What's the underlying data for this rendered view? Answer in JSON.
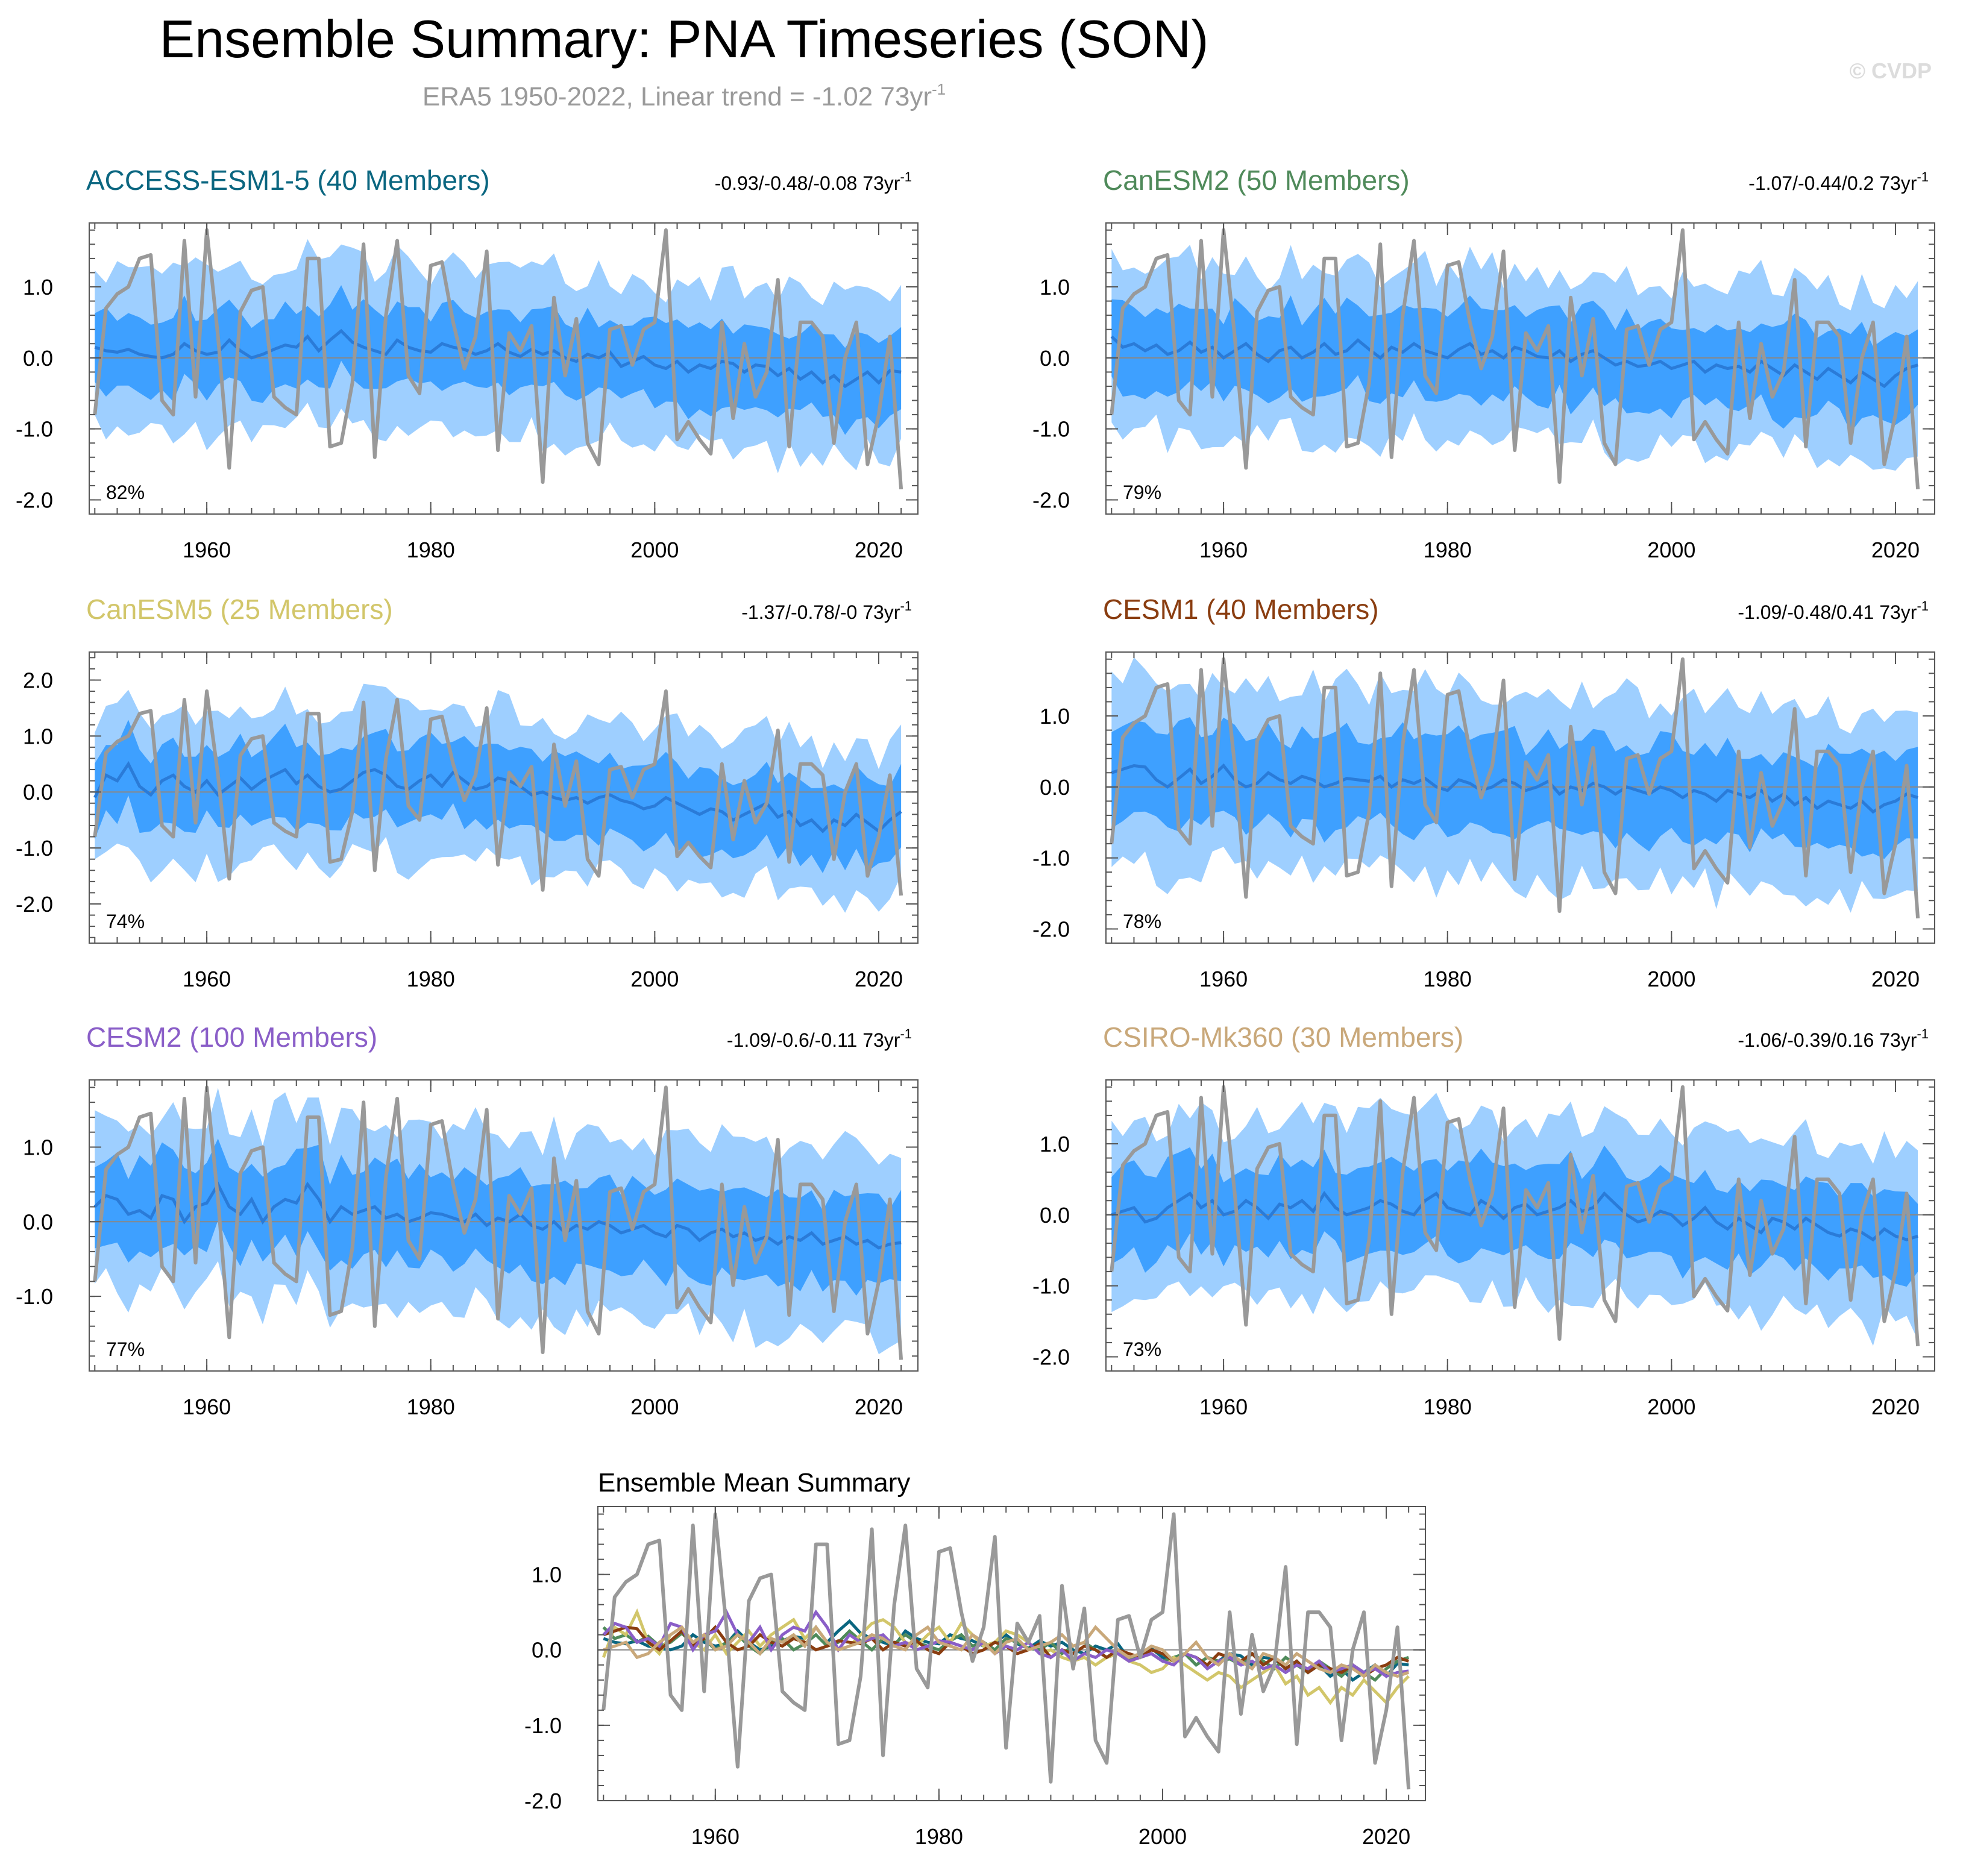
{
  "figure": {
    "title": "Ensemble Summary: PNA Timeseries (SON)",
    "subtitle_prefix": "ERA5 1950-2022, Linear trend = -1.02 73yr",
    "subtitle_sup": "-1",
    "watermark": "© CVDP",
    "trend_unit": "73yr",
    "trend_sup": "-1"
  },
  "colors": {
    "obs": "#999999",
    "outer_band": "#9ecfff",
    "inner_band": "#3ea0ff",
    "ens_mean": "#2a7bd8",
    "zero_line": "#888888"
  },
  "chart_data": [
    {
      "type": "area",
      "name": "ACCESS-ESM1-5",
      "title": "ACCESS-ESM1-5 (40 Members)",
      "title_color": "#0a6680",
      "trend_label": "-0.93/-0.48/-0.08",
      "percent_label": "82%",
      "ylim": [
        -2.2,
        1.9
      ],
      "yticks": [
        -2.0,
        -1.0,
        0.0,
        1.0
      ],
      "ytick_labels": [
        "-2.0",
        "-1.0",
        "0.0",
        "1.0"
      ],
      "xlim": [
        1949.5,
        2023.5
      ],
      "xticks": [
        1960,
        1980,
        2000,
        2020
      ],
      "mean_series": [
        0.15,
        0.1,
        0.08,
        0.12,
        0.05,
        0.02,
        0.0,
        0.05,
        0.2,
        0.1,
        0.05,
        0.08,
        0.25,
        0.1,
        0.0,
        0.05,
        0.12,
        0.18,
        0.15,
        0.3,
        0.1,
        0.25,
        0.38,
        0.22,
        0.15,
        0.1,
        0.05,
        0.25,
        0.15,
        0.1,
        0.08,
        0.2,
        0.15,
        0.12,
        0.05,
        0.1,
        0.2,
        0.08,
        0.02,
        0.12,
        0.05,
        0.1,
        0.0,
        -0.05,
        0.05,
        0.0,
        0.08,
        -0.12,
        -0.05,
        0.02,
        -0.1,
        -0.15,
        -0.05,
        -0.2,
        -0.1,
        -0.15,
        -0.05,
        -0.08,
        -0.2,
        -0.1,
        -0.12,
        -0.25,
        -0.15,
        -0.3,
        -0.2,
        -0.35,
        -0.25,
        -0.4,
        -0.3,
        -0.2,
        -0.35,
        -0.18,
        -0.2
      ],
      "inner_halfwidth": 0.55,
      "outer_halfwidth": 1.15,
      "seed": 11
    },
    {
      "type": "area",
      "name": "CanESM2",
      "title": "CanESM2 (50 Members)",
      "title_color": "#4f8a5a",
      "trend_label": "-1.07/-0.44/0.2",
      "percent_label": "79%",
      "ylim": [
        -2.2,
        1.9
      ],
      "yticks": [
        -2.0,
        -1.0,
        0.0,
        1.0
      ],
      "ytick_labels": [
        "-2.0",
        "-1.0",
        "0.0",
        "1.0"
      ],
      "xlim": [
        1949.5,
        2023.5
      ],
      "xticks": [
        1960,
        1980,
        2000,
        2020
      ],
      "mean_series": [
        0.3,
        0.15,
        0.2,
        0.1,
        0.18,
        0.05,
        0.1,
        0.22,
        0.08,
        0.15,
        0.0,
        0.1,
        0.2,
        0.05,
        -0.05,
        0.1,
        0.15,
        0.0,
        0.08,
        0.2,
        0.05,
        0.1,
        0.25,
        0.12,
        0.0,
        0.15,
        0.08,
        0.2,
        0.1,
        0.05,
        0.0,
        0.12,
        0.2,
        0.05,
        0.1,
        0.0,
        0.15,
        0.1,
        0.02,
        0.0,
        0.1,
        -0.05,
        0.05,
        0.1,
        0.0,
        -0.1,
        -0.05,
        -0.12,
        -0.1,
        -0.05,
        -0.15,
        -0.1,
        -0.05,
        -0.2,
        -0.1,
        -0.15,
        -0.12,
        -0.2,
        -0.05,
        -0.15,
        -0.25,
        -0.1,
        -0.2,
        -0.3,
        -0.15,
        -0.25,
        -0.35,
        -0.2,
        -0.3,
        -0.4,
        -0.25,
        -0.15,
        -0.1
      ],
      "inner_halfwidth": 0.6,
      "outer_halfwidth": 1.2,
      "seed": 23
    },
    {
      "type": "area",
      "name": "CanESM5",
      "title": "CanESM5 (25 Members)",
      "title_color": "#d2c66a",
      "trend_label": "-1.37/-0.78/-0",
      "percent_label": "74%",
      "ylim": [
        -2.7,
        2.5
      ],
      "yticks": [
        -2.0,
        -1.0,
        0.0,
        1.0,
        2.0
      ],
      "ytick_labels": [
        "-2.0",
        "-1.0",
        "0.0",
        "1.0",
        "2.0"
      ],
      "xlim": [
        1949.5,
        2023.5
      ],
      "xticks": [
        1960,
        1980,
        2000,
        2020
      ],
      "mean_series": [
        -0.1,
        0.3,
        0.2,
        0.5,
        0.1,
        -0.05,
        0.2,
        0.3,
        0.1,
        0.0,
        0.2,
        -0.05,
        0.1,
        0.25,
        0.05,
        0.2,
        0.3,
        0.4,
        0.15,
        0.3,
        0.1,
        0.0,
        0.05,
        0.2,
        0.35,
        0.4,
        0.3,
        0.1,
        0.05,
        0.2,
        0.3,
        0.1,
        0.35,
        0.2,
        0.05,
        0.1,
        0.25,
        0.2,
        0.1,
        -0.05,
        0.0,
        -0.1,
        -0.15,
        -0.1,
        -0.2,
        -0.1,
        -0.05,
        -0.15,
        -0.2,
        -0.3,
        -0.25,
        -0.1,
        -0.2,
        -0.3,
        -0.4,
        -0.3,
        -0.35,
        -0.5,
        -0.4,
        -0.3,
        -0.2,
        -0.45,
        -0.35,
        -0.6,
        -0.5,
        -0.7,
        -0.5,
        -0.6,
        -0.4,
        -0.55,
        -0.7,
        -0.5,
        -0.35
      ],
      "inner_halfwidth": 0.7,
      "outer_halfwidth": 1.35,
      "seed": 37
    },
    {
      "type": "area",
      "name": "CESM1",
      "title": "CESM1 (40 Members)",
      "title_color": "#8a3d10",
      "trend_label": "-1.09/-0.48/0.41",
      "percent_label": "78%",
      "ylim": [
        -2.2,
        1.9
      ],
      "yticks": [
        -2.0,
        -1.0,
        0.0,
        1.0
      ],
      "ytick_labels": [
        "-2.0",
        "-1.0",
        "0.0",
        "1.0"
      ],
      "xlim": [
        1949.5,
        2023.5
      ],
      "xticks": [
        1960,
        1980,
        2000,
        2020
      ],
      "mean_series": [
        0.2,
        0.25,
        0.3,
        0.28,
        0.1,
        0.0,
        0.12,
        0.25,
        0.05,
        0.15,
        0.3,
        0.1,
        0.0,
        0.05,
        0.2,
        0.1,
        0.05,
        0.15,
        0.1,
        0.0,
        0.05,
        0.12,
        0.1,
        0.08,
        0.15,
        0.0,
        0.1,
        0.05,
        0.12,
        0.0,
        -0.05,
        0.1,
        0.05,
        -0.05,
        0.0,
        0.1,
        0.05,
        -0.05,
        0.0,
        0.08,
        -0.1,
        0.0,
        -0.05,
        0.05,
        0.0,
        -0.1,
        0.0,
        -0.05,
        -0.1,
        0.0,
        -0.05,
        -0.15,
        -0.05,
        -0.1,
        -0.2,
        -0.05,
        -0.1,
        -0.15,
        -0.05,
        -0.2,
        -0.1,
        -0.25,
        -0.15,
        -0.3,
        -0.2,
        -0.25,
        -0.3,
        -0.2,
        -0.35,
        -0.25,
        -0.2,
        -0.1,
        -0.15
      ],
      "inner_halfwidth": 0.65,
      "outer_halfwidth": 1.3,
      "seed": 51
    },
    {
      "type": "area",
      "name": "CESM2",
      "title": "CESM2 (100 Members)",
      "title_color": "#8a5ec8",
      "trend_label": "-1.09/-0.6/-0.11",
      "percent_label": "77%",
      "ylim": [
        -2.0,
        1.9
      ],
      "yticks": [
        -1.0,
        0.0,
        1.0
      ],
      "ytick_labels": [
        "-1.0",
        "0.0",
        "1.0"
      ],
      "xlim": [
        1949.5,
        2023.5
      ],
      "xticks": [
        1960,
        1980,
        2000,
        2020
      ],
      "mean_series": [
        0.2,
        0.35,
        0.3,
        0.1,
        0.15,
        0.05,
        0.35,
        0.3,
        0.0,
        0.2,
        0.25,
        0.5,
        0.2,
        0.1,
        0.3,
        0.0,
        0.2,
        0.3,
        0.25,
        0.5,
        0.3,
        0.0,
        0.2,
        0.1,
        0.15,
        0.2,
        0.05,
        0.1,
        0.0,
        0.05,
        0.12,
        0.1,
        0.05,
        0.0,
        0.1,
        -0.05,
        0.05,
        0.0,
        0.1,
        -0.05,
        -0.1,
        0.0,
        -0.15,
        -0.05,
        -0.1,
        0.0,
        -0.05,
        -0.15,
        -0.1,
        -0.05,
        -0.15,
        -0.2,
        -0.05,
        -0.1,
        -0.25,
        -0.15,
        -0.1,
        -0.2,
        -0.15,
        -0.25,
        -0.2,
        -0.3,
        -0.2,
        -0.25,
        -0.15,
        -0.3,
        -0.25,
        -0.2,
        -0.3,
        -0.25,
        -0.35,
        -0.3,
        -0.28
      ],
      "inner_halfwidth": 0.6,
      "outer_halfwidth": 1.2,
      "seed": 67
    },
    {
      "type": "area",
      "name": "CSIRO-Mk360",
      "title": "CSIRO-Mk360 (30 Members)",
      "title_color": "#c9a87a",
      "trend_label": "-1.06/-0.39/0.16",
      "percent_label": "73%",
      "ylim": [
        -2.2,
        1.9
      ],
      "yticks": [
        -2.0,
        -1.0,
        0.0,
        1.0
      ],
      "ytick_labels": [
        "-2.0",
        "-1.0",
        "0.0",
        "1.0"
      ],
      "xlim": [
        1949.5,
        2023.5
      ],
      "xticks": [
        1960,
        1980,
        2000,
        2020
      ],
      "mean_series": [
        0.0,
        0.05,
        0.1,
        -0.1,
        -0.05,
        0.1,
        0.2,
        0.3,
        0.1,
        0.2,
        0.0,
        0.05,
        0.2,
        0.1,
        -0.05,
        0.15,
        0.1,
        0.2,
        0.05,
        0.3,
        0.1,
        0.0,
        0.05,
        0.1,
        0.2,
        0.15,
        0.05,
        0.0,
        0.2,
        0.3,
        0.1,
        0.05,
        0.0,
        0.2,
        0.1,
        -0.05,
        0.1,
        0.15,
        0.0,
        0.05,
        0.1,
        0.2,
        0.05,
        0.1,
        0.3,
        0.15,
        0.0,
        -0.1,
        -0.05,
        0.05,
        0.0,
        -0.15,
        -0.05,
        0.1,
        -0.1,
        -0.2,
        -0.05,
        -0.15,
        -0.25,
        -0.05,
        -0.1,
        -0.2,
        -0.05,
        -0.15,
        -0.25,
        -0.3,
        -0.2,
        -0.25,
        -0.35,
        -0.2,
        -0.3,
        -0.35,
        -0.3
      ],
      "inner_halfwidth": 0.6,
      "outer_halfwidth": 1.25,
      "seed": 83
    },
    {
      "type": "line",
      "name": "Ensemble Mean Summary",
      "title": "Ensemble Mean Summary",
      "ylim": [
        -2.0,
        1.9
      ],
      "yticks": [
        -2.0,
        -1.0,
        0.0,
        1.0
      ],
      "ytick_labels": [
        "-2.0",
        "-1.0",
        "0.0",
        "1.0"
      ],
      "xlim": [
        1949.5,
        2023.5
      ],
      "xticks": [
        1960,
        1980,
        2000,
        2020
      ],
      "series_colors": [
        "#0a6680",
        "#4f8a5a",
        "#d2c66a",
        "#8a3d10",
        "#8a5ec8",
        "#c9a87a"
      ]
    }
  ],
  "obs": {
    "name": "ERA5",
    "start_year": 1950,
    "values": [
      -0.8,
      0.7,
      0.9,
      1.0,
      1.4,
      1.45,
      -0.6,
      -0.8,
      1.65,
      -0.55,
      1.8,
      0.3,
      -1.55,
      0.65,
      0.95,
      1.0,
      -0.55,
      -0.7,
      -0.8,
      1.4,
      1.4,
      -1.25,
      -1.2,
      -0.35,
      1.6,
      -1.4,
      0.6,
      1.65,
      -0.25,
      -0.5,
      1.3,
      1.35,
      0.5,
      -0.15,
      0.3,
      1.5,
      -1.3,
      0.35,
      0.1,
      0.45,
      -1.75,
      0.85,
      -0.25,
      0.55,
      -1.2,
      -1.5,
      0.4,
      0.45,
      -0.1,
      0.4,
      0.5,
      1.8,
      -1.15,
      -0.9,
      -1.15,
      -1.35,
      0.5,
      -0.85,
      0.2,
      -0.55,
      -0.2,
      1.1,
      -1.25,
      0.5,
      0.5,
      0.3,
      -1.2,
      0.0,
      0.5,
      -1.5,
      -0.8,
      0.3,
      -1.85
    ]
  }
}
